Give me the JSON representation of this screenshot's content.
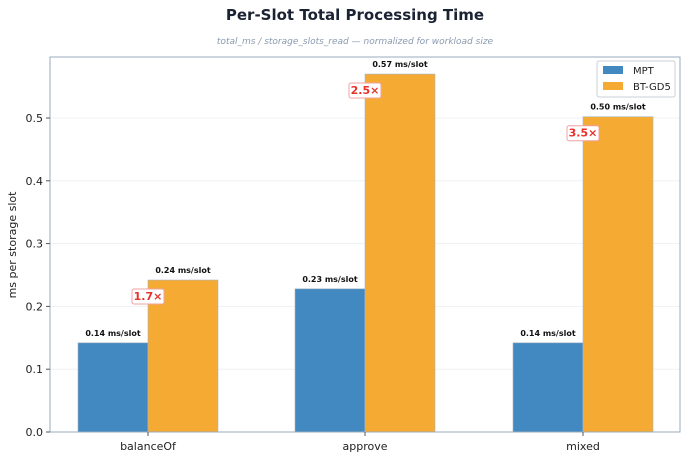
{
  "chart_data": {
    "type": "bar",
    "title": "Per-Slot Total Processing Time",
    "subtitle": "total_ms / storage_slots_read — normalized for workload size",
    "xlabel": "",
    "ylabel": "ms per storage slot",
    "ylim": [
      0,
      0.6
    ],
    "yticks": [
      "0.0",
      "0.1",
      "0.2",
      "0.3",
      "0.4",
      "0.5"
    ],
    "grid": true,
    "legend_position": "top-right",
    "categories": [
      "balanceOf",
      "approve",
      "mixed"
    ],
    "series": [
      {
        "name": "MPT",
        "color": "#4189c0",
        "values": [
          0.142,
          0.228,
          0.142
        ],
        "labels": [
          "0.14 ms/slot",
          "0.23 ms/slot",
          "0.14 ms/slot"
        ]
      },
      {
        "name": "BT-GD5",
        "color": "#f5ab33",
        "values": [
          0.242,
          0.57,
          0.502
        ],
        "labels": [
          "0.24 ms/slot",
          "0.57 ms/slot",
          "0.50 ms/slot"
        ]
      }
    ],
    "ratios": [
      "1.7×",
      "2.5×",
      "3.5×"
    ],
    "ratio_color": "#e8302a"
  }
}
